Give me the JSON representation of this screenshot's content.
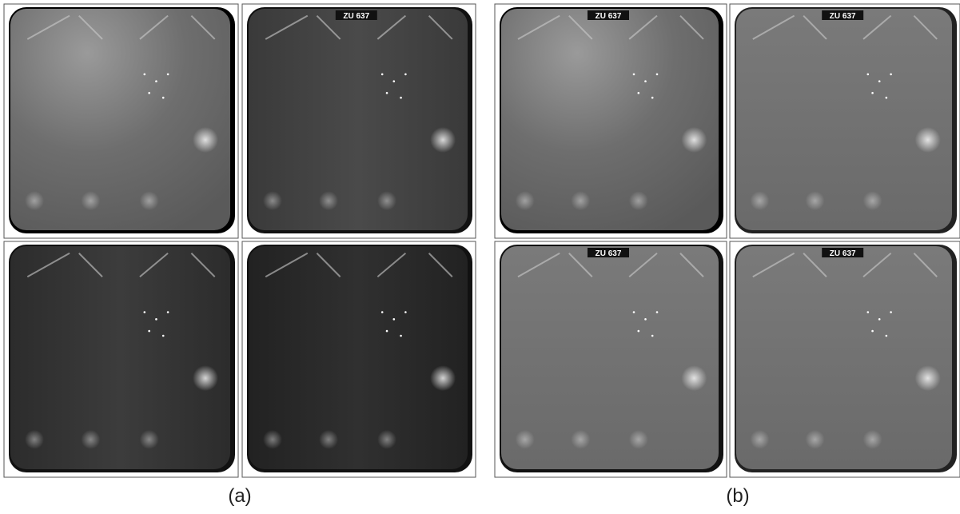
{
  "figure": {
    "groups": [
      {
        "label": "(a)"
      },
      {
        "label": "(b)"
      }
    ],
    "image_text": "ZU 637"
  }
}
